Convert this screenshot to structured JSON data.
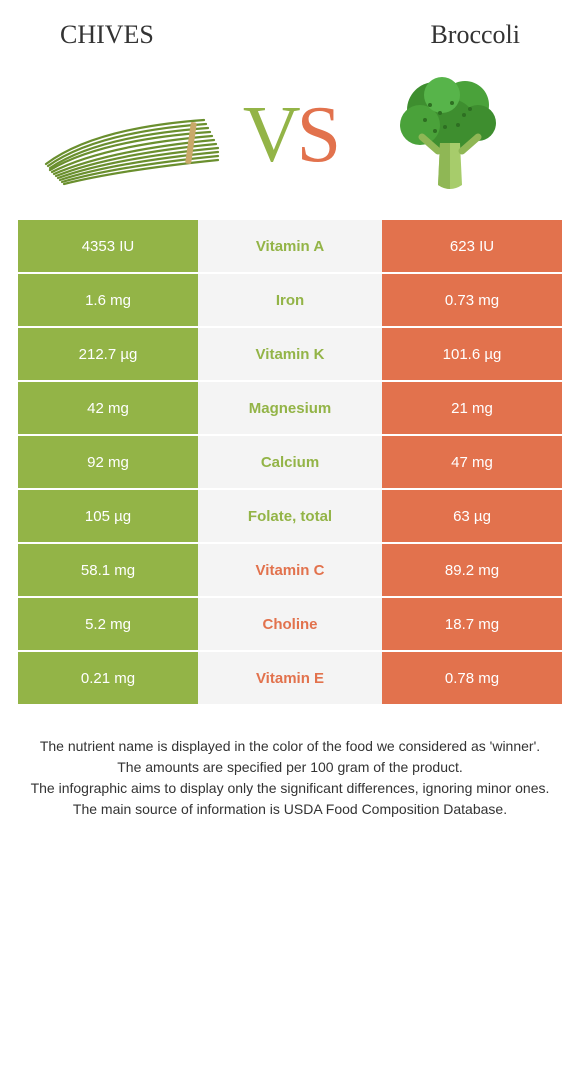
{
  "header": {
    "left": "CHIVES",
    "right": "Broccoli"
  },
  "vs": {
    "v": "V",
    "s": "S"
  },
  "colors": {
    "left": "#93b447",
    "right": "#e2724d",
    "mid_bg": "#f4f4f4",
    "background": "#ffffff",
    "text": "#333333"
  },
  "table": {
    "rows": [
      {
        "left": "4353 IU",
        "nutrient": "Vitamin A",
        "right": "623 IU",
        "winner": "left"
      },
      {
        "left": "1.6 mg",
        "nutrient": "Iron",
        "right": "0.73 mg",
        "winner": "left"
      },
      {
        "left": "212.7 µg",
        "nutrient": "Vitamin K",
        "right": "101.6 µg",
        "winner": "left"
      },
      {
        "left": "42 mg",
        "nutrient": "Magnesium",
        "right": "21 mg",
        "winner": "left"
      },
      {
        "left": "92 mg",
        "nutrient": "Calcium",
        "right": "47 mg",
        "winner": "left"
      },
      {
        "left": "105 µg",
        "nutrient": "Folate, total",
        "right": "63 µg",
        "winner": "left"
      },
      {
        "left": "58.1 mg",
        "nutrient": "Vitamin C",
        "right": "89.2 mg",
        "winner": "right"
      },
      {
        "left": "5.2 mg",
        "nutrient": "Choline",
        "right": "18.7 mg",
        "winner": "right"
      },
      {
        "left": "0.21 mg",
        "nutrient": "Vitamin E",
        "right": "0.78 mg",
        "winner": "right"
      }
    ]
  },
  "footer": {
    "lines": [
      "The nutrient name is displayed in the color of the food we considered as 'winner'.",
      "The amounts are specified per 100 gram of the product.",
      "The infographic aims to display only the significant differences, ignoring minor ones.",
      "The main source of information is USDA Food Composition Database."
    ]
  },
  "illustrations": {
    "left_name": "chives",
    "right_name": "broccoli"
  }
}
